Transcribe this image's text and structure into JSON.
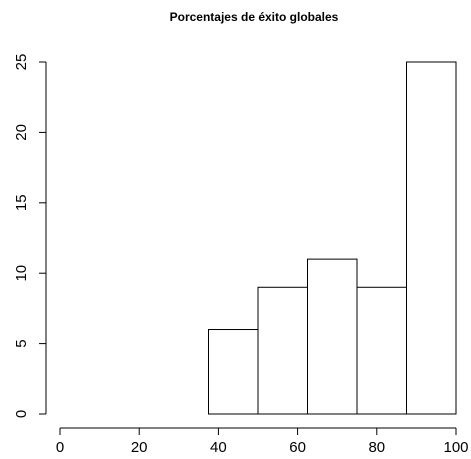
{
  "chart_data": {
    "type": "bar",
    "title": "Porcentajes de éxito globales",
    "xlabel": "",
    "ylabel": "",
    "xlim": [
      0,
      100
    ],
    "ylim": [
      0,
      25
    ],
    "x_ticks": [
      0,
      20,
      40,
      60,
      80,
      100
    ],
    "y_ticks": [
      0,
      5,
      10,
      15,
      20,
      25
    ],
    "bins": [
      {
        "from": 37.5,
        "to": 50,
        "count": 6
      },
      {
        "from": 50,
        "to": 62.5,
        "count": 9
      },
      {
        "from": 62.5,
        "to": 75,
        "count": 11
      },
      {
        "from": 75,
        "to": 87.5,
        "count": 9
      },
      {
        "from": 87.5,
        "to": 100,
        "count": 25
      }
    ],
    "bar_fill": "#ffffff",
    "bar_stroke": "#000000",
    "grid": false
  }
}
